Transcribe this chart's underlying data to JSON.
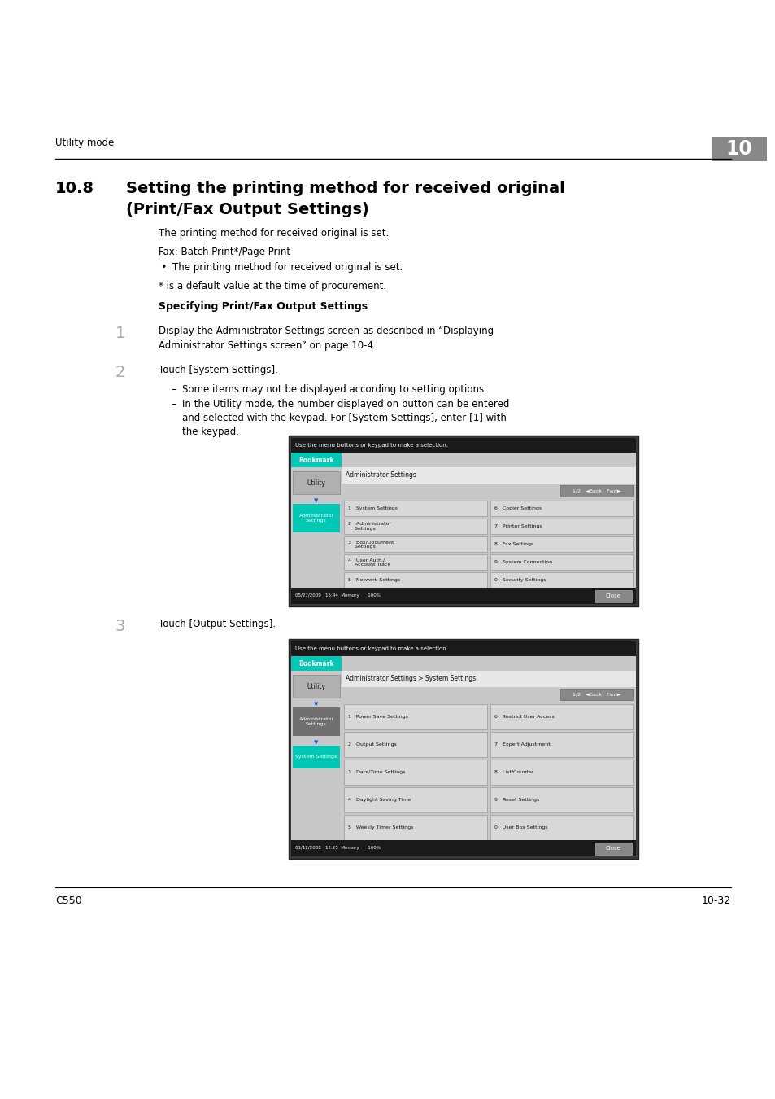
{
  "page_bg": "#ffffff",
  "header_text": "Utility mode",
  "header_number": "10",
  "section_number": "10.8",
  "section_title_line1": "Setting the printing method for received original",
  "section_title_line2": "(Print/Fax Output Settings)",
  "para1": "The printing method for received original is set.",
  "fax_label": "Fax: Batch Print*/Page Print",
  "bullet1": "The printing method for received original is set.",
  "note1": "* is a default value at the time of procurement.",
  "subsection_title": "Specifying Print/Fax Output Settings",
  "step1_num": "1",
  "step1_text_line1": "Display the Administrator Settings screen as described in “Displaying",
  "step1_text_line2": "Administrator Settings screen” on page 10-4.",
  "step2_num": "2",
  "step2_text": "Touch [System Settings].",
  "bullet2a": "Some items may not be displayed according to setting options.",
  "bullet2b_line1": "In the Utility mode, the number displayed on button can be entered",
  "bullet2b_line2": "and selected with the keypad. For [System Settings], enter [1] with",
  "bullet2b_line3": "the keypad.",
  "step3_num": "3",
  "step3_text": "Touch [Output Settings].",
  "footer_left": "C550",
  "footer_right": "10-32",
  "text_color": "#000000",
  "screen1": {
    "left_label": "Bookmark",
    "title": "Administrator Settings",
    "nav": "1/2   ◄Back   Fwd►",
    "sidebar_btn1": "Utility",
    "sidebar_btn2_line1": "Administrator",
    "sidebar_btn2_line2": "Settings",
    "sidebar_btn2_color": "#00c8b4",
    "menu_left": [
      "1   System Settings",
      "2   Administrator\n    Settings",
      "3   Box/Document\n    Settings",
      "4   User Auth./\n    Account Track",
      "5   Network Settings"
    ],
    "menu_right": [
      "6   Copier Settings",
      "7   Printer Settings",
      "8   Fax Settings",
      "9   System Connection",
      "0   Security Settings"
    ],
    "footer_text": "05/27/2009   15:44\nMemory      100%",
    "close_btn": "Close"
  },
  "screen2": {
    "left_label": "Bookmark",
    "title": "Administrator Settings > System Settings",
    "nav": "1/2   ◄Back   Fwd►",
    "sidebar_btn1": "Utility",
    "sidebar_btn2_line1": "Administrator",
    "sidebar_btn2_line2": "Settings",
    "sidebar_btn2_color": "#707070",
    "sidebar_btn3_line1": "System Settings",
    "sidebar_btn3_color": "#00c8b4",
    "menu_left": [
      "1   Power Save Settings",
      "2   Output Settings",
      "3   Date/Time Settings",
      "4   Daylight Saving Time",
      "5   Weekly Timer Settings"
    ],
    "menu_right": [
      "6   Restrict User Access",
      "7   Expert Adjustment",
      "8   List/Counter",
      "9   Reset Settings",
      "0   User Box Settings"
    ],
    "footer_text": "01/12/2008   12:25\nMemory      100%",
    "close_btn": "Close"
  }
}
